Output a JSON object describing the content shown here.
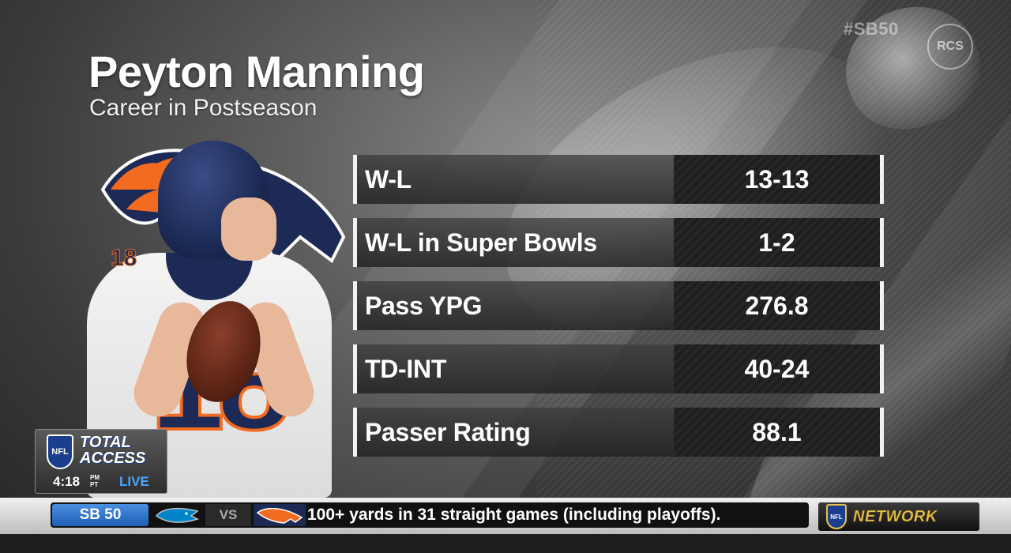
{
  "overlay": {
    "hashtag": "#SB50",
    "badge": "RCS"
  },
  "graphic": {
    "title": "Peyton Manning",
    "subtitle": "Career in Postseason",
    "jersey_number": "18",
    "stats": [
      {
        "label": "W-L",
        "value": "13-13"
      },
      {
        "label": "W-L in Super Bowls",
        "value": "1-2"
      },
      {
        "label": "Pass YPG",
        "value": "276.8"
      },
      {
        "label": "TD-INT",
        "value": "40-24"
      },
      {
        "label": "Passer Rating",
        "value": "88.1"
      }
    ]
  },
  "show_bug": {
    "league": "NFL",
    "show_line1": "TOTAL",
    "show_line2": "ACCESS",
    "time": "4:18",
    "ampm": "PM",
    "tz": "PT",
    "live": "LIVE"
  },
  "ticker": {
    "tag": "SB 50",
    "vs": "VS",
    "text": "100+ yards in 31 straight games (including playoffs).",
    "network_league": "NFL",
    "network": "NETWORK"
  },
  "colors": {
    "broncos_navy": "#1c2a55",
    "broncos_orange": "#f36b21",
    "live_blue": "#4aa8ff",
    "network_gold": "#e6c24a",
    "tag_blue": "#1f5fb5"
  },
  "icons": {
    "broncos_logo": "horse-head-icon",
    "panthers_logo": "panther-head-icon",
    "nfl_logo": "nfl-shield-icon"
  }
}
